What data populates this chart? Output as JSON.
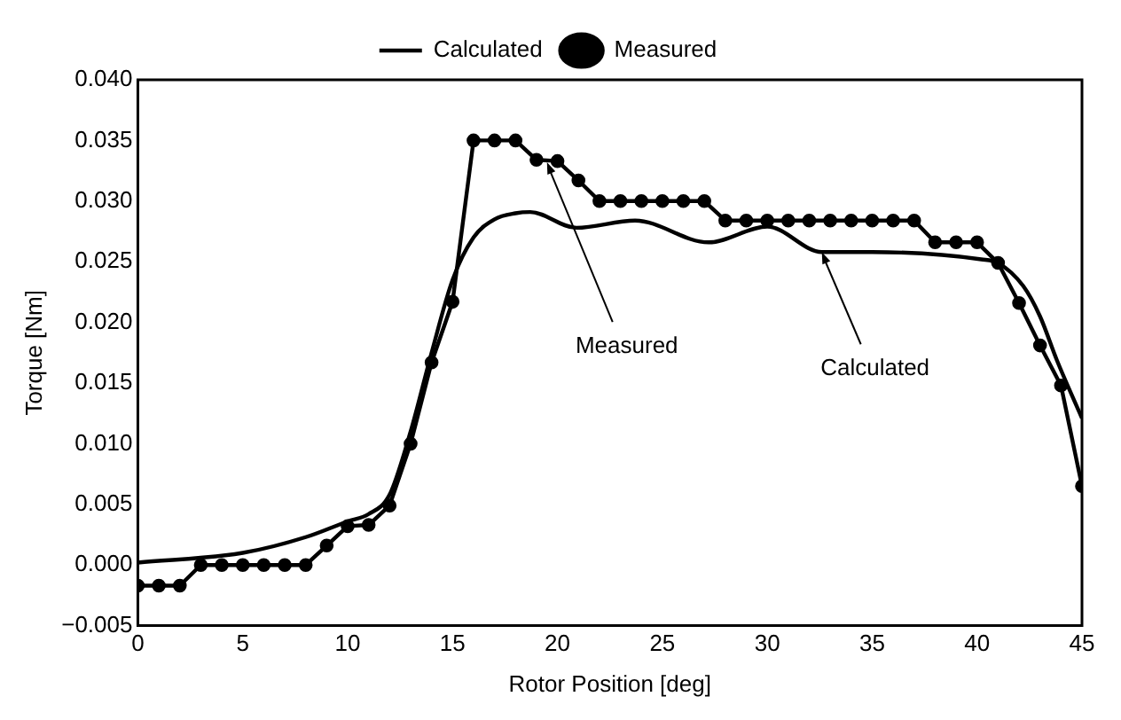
{
  "chart_data": {
    "type": "line",
    "xlabel": "Rotor Position [deg]",
    "ylabel": "Torque [Nm]",
    "xlim": [
      0,
      45
    ],
    "xticks": [
      0,
      5,
      10,
      15,
      20,
      25,
      30,
      35,
      40,
      45
    ],
    "ylim": [
      -0.005,
      0.04
    ],
    "yticks": [
      {
        "value": -0.005,
        "label": "−0.005"
      },
      {
        "value": 0,
        "label": "0.000"
      },
      {
        "value": 0.005,
        "label": "0.005"
      },
      {
        "value": 0.01,
        "label": "0.010"
      },
      {
        "value": 0.015,
        "label": "0.015"
      },
      {
        "value": 0.02,
        "label": "0.020"
      },
      {
        "value": 0.025,
        "label": "0.025"
      },
      {
        "value": 0.03,
        "label": "0.030"
      },
      {
        "value": 0.035,
        "label": "0.035"
      },
      {
        "value": 0.04,
        "label": "0.040"
      }
    ],
    "grid": false,
    "legend": "top",
    "series": [
      {
        "name": "Calculated",
        "color": "#000000",
        "marker": "none",
        "x": [
          0,
          5,
          8,
          10,
          11,
          12,
          13,
          14,
          15,
          16,
          17,
          18,
          18.7,
          20.9,
          23.7,
          27.2,
          30,
          32.6,
          35,
          40.2,
          41,
          42.2,
          43,
          43.8,
          45
        ],
        "values": [
          0.0002,
          0.001,
          0.0023,
          0.0036,
          0.0042,
          0.0058,
          0.011,
          0.0175,
          0.0235,
          0.027,
          0.0285,
          0.029,
          0.0291,
          0.0278,
          0.0284,
          0.0266,
          0.0279,
          0.0258,
          0.0258,
          0.0252,
          0.0249,
          0.023,
          0.0205,
          0.0169,
          0.0121
        ]
      },
      {
        "name": "Measured",
        "color": "#000000",
        "marker": "circle",
        "x": [
          0,
          1,
          2,
          3,
          4,
          5,
          6,
          7,
          8,
          9,
          10,
          11,
          12,
          13,
          14,
          15,
          16,
          17,
          18,
          19,
          20,
          21,
          22,
          23,
          24,
          25,
          26,
          27,
          28,
          29,
          30,
          31,
          32,
          33,
          34,
          35,
          36,
          37,
          38,
          39,
          40,
          41,
          42,
          43,
          44,
          45
        ],
        "values": [
          -0.0017,
          -0.0017,
          -0.0017,
          0,
          0,
          0,
          0,
          0,
          0,
          0.0016,
          0.0032,
          0.0033,
          0.0049,
          0.01,
          0.0167,
          0.0217,
          0.035,
          0.035,
          0.035,
          0.0334,
          0.0333,
          0.0317,
          0.03,
          0.03,
          0.03,
          0.03,
          0.03,
          0.03,
          0.0284,
          0.0284,
          0.0284,
          0.0284,
          0.0284,
          0.0284,
          0.0284,
          0.0284,
          0.0284,
          0.0284,
          0.0266,
          0.0266,
          0.0266,
          0.0249,
          0.0216,
          0.0181,
          0.0148,
          0.0065
        ]
      }
    ],
    "annotations": [
      {
        "text": "Measured",
        "x": 19.5,
        "y": 0.0332
      },
      {
        "text": "Calculated",
        "x": 32.6,
        "y": 0.0258
      }
    ]
  }
}
